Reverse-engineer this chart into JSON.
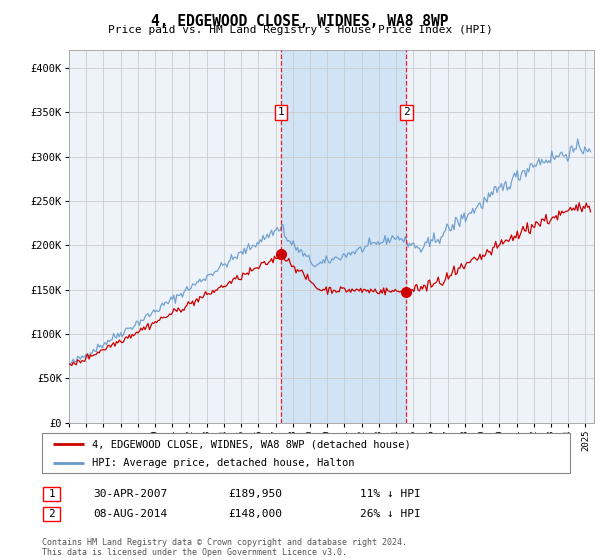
{
  "title": "4, EDGEWOOD CLOSE, WIDNES, WA8 8WP",
  "subtitle": "Price paid vs. HM Land Registry's House Price Index (HPI)",
  "ylim": [
    0,
    420000
  ],
  "xlim_start": 1995.0,
  "xlim_end": 2025.5,
  "sale1_date": 2007.33,
  "sale1_price": 189950,
  "sale1_label": "1",
  "sale2_date": 2014.6,
  "sale2_price": 148000,
  "sale2_label": "2",
  "legend_line1": "4, EDGEWOOD CLOSE, WIDNES, WA8 8WP (detached house)",
  "legend_line2": "HPI: Average price, detached house, Halton",
  "ann1_date": "30-APR-2007",
  "ann1_price": "£189,950",
  "ann1_pct": "11% ↓ HPI",
  "ann2_date": "08-AUG-2014",
  "ann2_price": "£148,000",
  "ann2_pct": "26% ↓ HPI",
  "footer": "Contains HM Land Registry data © Crown copyright and database right 2024.\nThis data is licensed under the Open Government Licence v3.0.",
  "hpi_color": "#6699cc",
  "price_color": "#cc0000",
  "background_color": "#eef3fa",
  "highlight_color": "#d0e4f5",
  "grid_color": "#cccccc"
}
